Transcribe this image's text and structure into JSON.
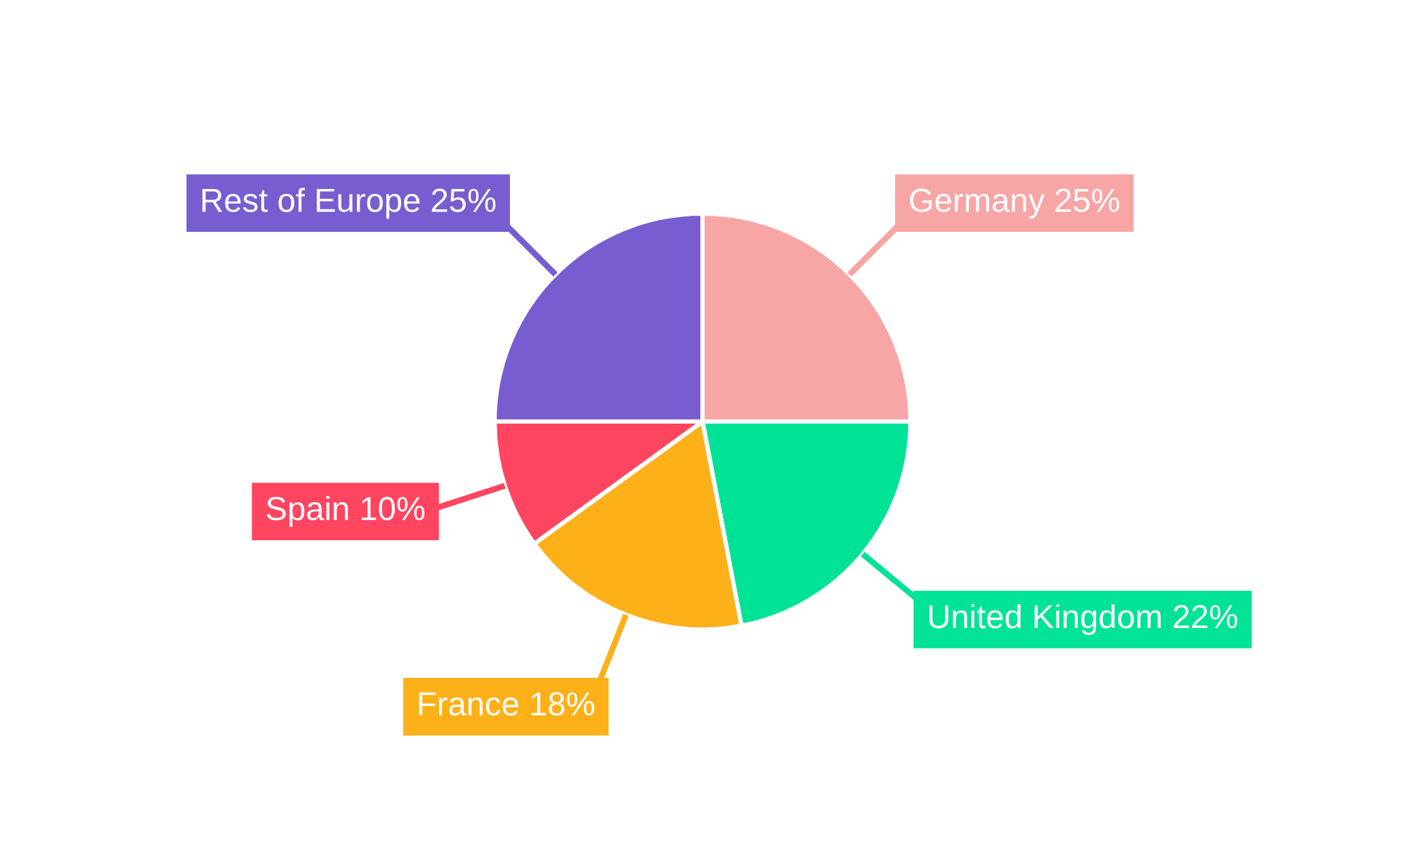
{
  "chart_data": {
    "type": "pie",
    "categories": [
      "Germany",
      "United Kingdom",
      "France",
      "Spain",
      "Rest of Europe"
    ],
    "values": [
      25,
      22,
      18,
      10,
      25
    ],
    "colors": [
      "#f8a5a5",
      "#00e396",
      "#feb019",
      "#ff4560",
      "#775dd0"
    ],
    "value_labels": [
      "25%",
      "22%",
      "18%",
      "10%",
      "25%"
    ]
  }
}
